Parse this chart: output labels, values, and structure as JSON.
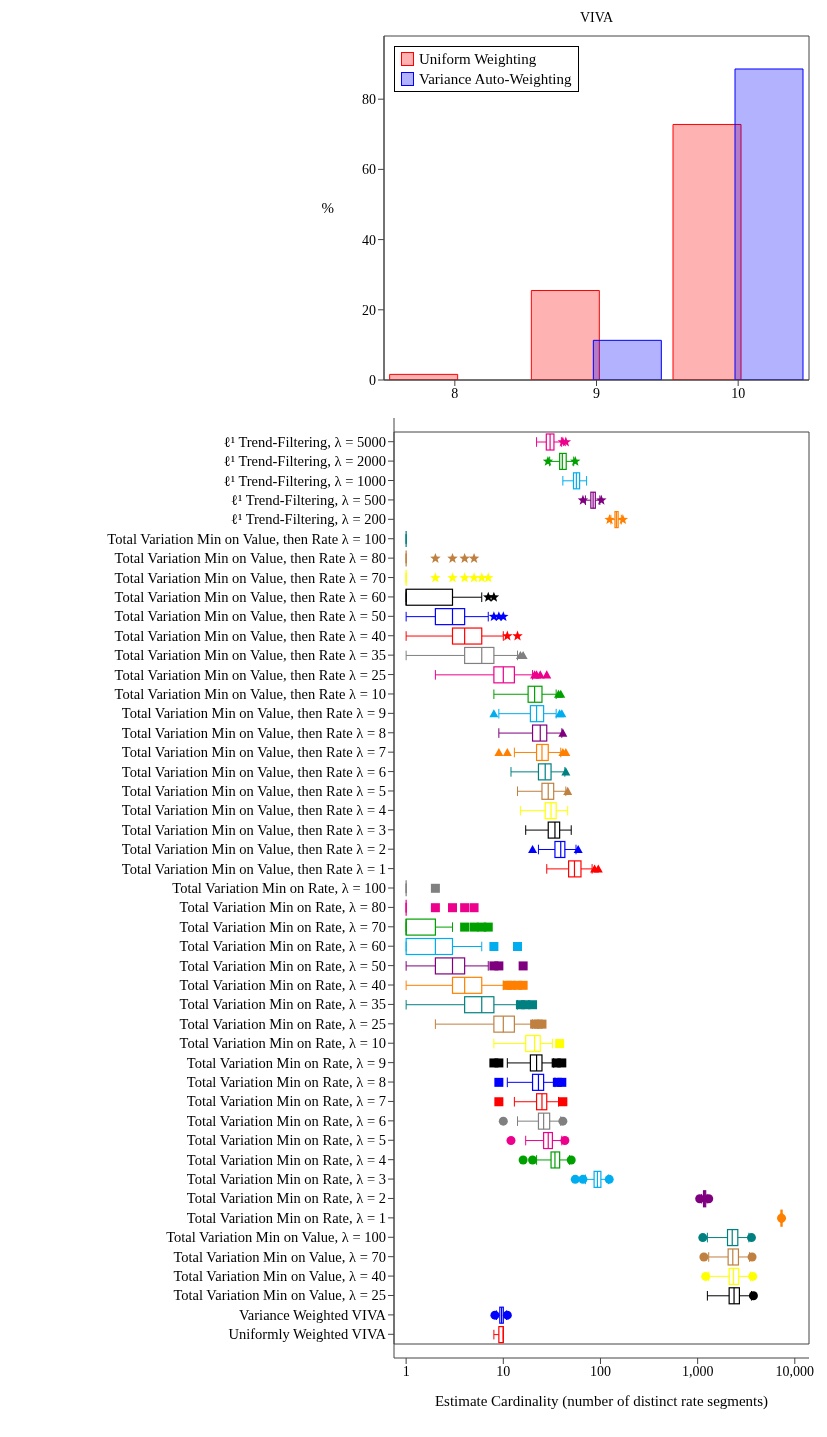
{
  "chart_data": [
    {
      "type": "bar",
      "title": "VIVA",
      "ylabel": "%",
      "categories": [
        "8",
        "9",
        "10"
      ],
      "series": [
        {
          "name": "Uniform Weighting",
          "color": "#ff0000",
          "values": [
            1.6,
            25.5,
            72.8
          ]
        },
        {
          "name": "Variance Auto-Weighting",
          "color": "#0000ff",
          "values": [
            0,
            11.3,
            88.6
          ]
        }
      ],
      "ylim": [
        0,
        98
      ],
      "yticks": [
        0,
        20,
        40,
        60,
        80
      ],
      "legend": "top left"
    },
    {
      "type": "box",
      "orientation": "horizontal",
      "xlabel": "Estimate Cardinality (number of distinct rate segments)",
      "log": "x",
      "xlim": [
        0.75,
        14000
      ],
      "xticks": [
        1,
        10,
        100,
        {
          "value": 1000,
          "label": "1,000"
        },
        {
          "value": 10000,
          "label": "10,000"
        }
      ],
      "categories": [
        "ℓ¹ Trend-Filtering, λ = 5000",
        "ℓ¹ Trend-Filtering, λ = 2000",
        "ℓ¹ Trend-Filtering, λ = 1000",
        "ℓ¹ Trend-Filtering, λ = 500",
        "ℓ¹ Trend-Filtering, λ = 200",
        "Total Variation Min on Value, then Rate λ = 100",
        "Total Variation Min on Value, then Rate λ = 80",
        "Total Variation Min on Value, then Rate λ = 70",
        "Total Variation Min on Value, then Rate λ = 60",
        "Total Variation Min on Value, then Rate λ = 50",
        "Total Variation Min on Value, then Rate λ = 40",
        "Total Variation Min on Value, then Rate λ = 35",
        "Total Variation Min on Value, then Rate λ = 25",
        "Total Variation Min on Value, then Rate λ = 10",
        "Total Variation Min on Value, then Rate λ = 9",
        "Total Variation Min on Value, then Rate λ = 8",
        "Total Variation Min on Value, then Rate λ = 7",
        "Total Variation Min on Value, then Rate λ = 6",
        "Total Variation Min on Value, then Rate λ = 5",
        "Total Variation Min on Value, then Rate λ = 4",
        "Total Variation Min on Value, then Rate λ = 3",
        "Total Variation Min on Value, then Rate λ = 2",
        "Total Variation Min on Value, then Rate λ = 1",
        "Total Variation Min on Rate, λ = 100",
        "Total Variation Min on Rate, λ = 80",
        "Total Variation Min on Rate, λ = 70",
        "Total Variation Min on Rate, λ = 60",
        "Total Variation Min on Rate, λ = 50",
        "Total Variation Min on Rate, λ = 40",
        "Total Variation Min on Rate, λ = 35",
        "Total Variation Min on Rate, λ = 25",
        "Total Variation Min on Rate, λ = 10",
        "Total Variation Min on Rate, λ = 9",
        "Total Variation Min on Rate, λ = 8",
        "Total Variation Min on Rate, λ = 7",
        "Total Variation Min on Rate, λ = 6",
        "Total Variation Min on Rate, λ = 5",
        "Total Variation Min on Rate, λ = 4",
        "Total Variation Min on Rate, λ = 3",
        "Total Variation Min on Rate, λ = 2",
        "Total Variation Min on Rate, λ = 1",
        "Total Variation Min on Value, λ = 100",
        "Total Variation Min on Value, λ = 70",
        "Total Variation Min on Value, λ = 40",
        "Total Variation Min on Value, λ = 25",
        "Variance Weighted VIVA",
        "Uniformly Weighted VIVA"
      ],
      "series": [
        {
          "marker": "star",
          "colors": [
            "#ec008c",
            "#00a000",
            "#00aeef",
            "#7f007f",
            "#ff8000",
            "#008080",
            "#bf8040",
            "#ffff00",
            "#000000",
            "#0000ff",
            "#ff0000",
            null,
            null,
            null,
            null,
            null,
            null,
            null,
            null,
            null,
            null,
            null,
            null,
            null,
            null,
            null,
            null,
            null,
            null,
            null,
            null,
            null,
            null,
            null,
            null,
            null,
            null,
            null,
            null,
            null,
            null,
            null,
            null,
            null,
            null,
            null,
            null
          ],
          "boxes": [
            {
              "low": 22,
              "q1": 27.7,
              "median": 30.3,
              "q3": 33.2,
              "high": 39.6,
              "outliers": [
                41,
                44
              ]
            },
            {
              "low": 30,
              "q1": 38,
              "median": 40.5,
              "q3": 44.4,
              "high": 53,
              "outliers": [
                28.8,
                55
              ]
            },
            {
              "low": 41,
              "q1": 52.8,
              "median": 56.5,
              "q3": 61,
              "high": 72
            },
            {
              "low": 70,
              "q1": 79.6,
              "median": 84,
              "q3": 88.5,
              "high": 98.5,
              "outliers": [
                66,
                102
              ]
            },
            {
              "low": 128,
              "q1": 141,
              "median": 146,
              "q3": 152,
              "high": 164,
              "outliers": [
                124,
                170
              ]
            },
            {
              "low": 1,
              "q1": 1,
              "median": 1,
              "q3": 1,
              "high": 1
            },
            {
              "low": 1,
              "q1": 1,
              "median": 1,
              "q3": 1,
              "high": 1,
              "outliers": [
                2,
                3,
                4,
                5
              ]
            },
            {
              "low": 1,
              "q1": 1,
              "median": 1,
              "q3": 1,
              "high": 1,
              "outliers": [
                2,
                3,
                4,
                5,
                6,
                7
              ]
            },
            {
              "low": 1,
              "q1": 1,
              "median": 1,
              "q3": 3,
              "high": 6,
              "outliers": [
                7,
                8
              ]
            },
            {
              "low": 1,
              "q1": 2,
              "median": 3,
              "q3": 4,
              "high": 7,
              "outliers": [
                8,
                9,
                10
              ]
            },
            {
              "low": 1,
              "q1": 3,
              "median": 4,
              "q3": 6,
              "high": 10,
              "outliers": [
                11,
                14
              ]
            },
            null,
            null,
            null,
            null,
            null,
            null,
            null,
            null,
            null,
            null,
            null,
            null,
            null,
            null,
            null,
            null,
            null,
            null,
            null,
            null,
            null,
            null,
            null,
            null,
            null,
            null,
            null,
            null,
            null,
            null,
            null,
            null,
            null,
            null,
            null,
            null
          ]
        },
        {
          "marker": "triangle",
          "colors": [
            null,
            null,
            null,
            null,
            null,
            null,
            null,
            null,
            null,
            null,
            null,
            "#808080",
            "#ec008c",
            "#00a000",
            "#00aeef",
            "#7f007f",
            "#ff8000",
            "#008080",
            "#bf8040",
            "#ffff00",
            "#000000",
            "#0000ff",
            "#ff0000",
            null,
            null,
            null,
            null,
            null,
            null,
            null,
            null,
            null,
            null,
            null,
            null,
            null,
            null,
            null,
            null,
            null,
            null,
            null,
            null,
            null,
            null,
            null,
            null
          ],
          "boxes": [
            null,
            null,
            null,
            null,
            null,
            null,
            null,
            null,
            null,
            null,
            null,
            {
              "low": 1,
              "q1": 4,
              "median": 6,
              "q3": 8,
              "high": 14,
              "outliers": [
                15,
                16
              ]
            },
            {
              "low": 2,
              "q1": 8,
              "median": 10,
              "q3": 13,
              "high": 20,
              "outliers": [
                21,
                22,
                24,
                28
              ]
            },
            {
              "low": 8,
              "q1": 18,
              "median": 21,
              "q3": 25,
              "high": 35,
              "outliers": [
                37,
                39
              ]
            },
            {
              "low": 9,
              "q1": 19,
              "median": 22,
              "q3": 26,
              "high": 35,
              "outliers": [
                8,
                38,
                40
              ]
            },
            {
              "low": 9,
              "q1": 20,
              "median": 24,
              "q3": 28,
              "high": 40,
              "outliers": [
                41
              ]
            },
            {
              "low": 13,
              "q1": 22,
              "median": 25,
              "q3": 29,
              "high": 39,
              "outliers": [
                9,
                11,
                41,
                44
              ]
            },
            {
              "low": 12,
              "q1": 23,
              "median": 27,
              "q3": 31,
              "high": 43,
              "outliers": [
                44
              ]
            },
            {
              "low": 14,
              "q1": 25,
              "median": 29,
              "q3": 33,
              "high": 44,
              "outliers": [
                46
              ]
            },
            {
              "low": 15,
              "q1": 27,
              "median": 31,
              "q3": 35,
              "high": 46
            },
            {
              "low": 17,
              "q1": 29,
              "median": 34,
              "q3": 38,
              "high": 50
            },
            {
              "low": 23,
              "q1": 34,
              "median": 39,
              "q3": 43,
              "high": 56,
              "outliers": [
                20,
                59
              ]
            },
            {
              "low": 28,
              "q1": 47,
              "median": 54,
              "q3": 63,
              "high": 82,
              "outliers": [
                87,
                95
              ]
            },
            null,
            null,
            null,
            null,
            null,
            null,
            null,
            null,
            null,
            null,
            null,
            null,
            null,
            null,
            null,
            null,
            null,
            null,
            null,
            null,
            null,
            null,
            null,
            null
          ]
        },
        {
          "marker": "square",
          "colors": [
            null,
            null,
            null,
            null,
            null,
            null,
            null,
            null,
            null,
            null,
            null,
            null,
            null,
            null,
            null,
            null,
            null,
            null,
            null,
            null,
            null,
            null,
            null,
            "#808080",
            "#ec008c",
            "#00a000",
            "#00aeef",
            "#7f007f",
            "#ff8000",
            "#008080",
            "#bf8040",
            "#ffff00",
            "#000000",
            "#0000ff",
            "#ff0000",
            null,
            null,
            null,
            null,
            null,
            null,
            null,
            null,
            null,
            null,
            null,
            null
          ],
          "boxes": [
            null,
            null,
            null,
            null,
            null,
            null,
            null,
            null,
            null,
            null,
            null,
            null,
            null,
            null,
            null,
            null,
            null,
            null,
            null,
            null,
            null,
            null,
            null,
            {
              "low": 1,
              "q1": 1,
              "median": 1,
              "q3": 1,
              "high": 1,
              "outliers": [
                2
              ]
            },
            {
              "low": 1,
              "q1": 1,
              "median": 1,
              "q3": 1,
              "high": 1,
              "outliers": [
                2,
                3,
                4,
                5
              ]
            },
            {
              "low": 1,
              "q1": 1,
              "median": 1,
              "q3": 2,
              "high": 3,
              "outliers": [
                4,
                5,
                6,
                7
              ]
            },
            {
              "low": 1,
              "q1": 1,
              "median": 2,
              "q3": 3,
              "high": 6,
              "outliers": [
                8,
                14
              ]
            },
            {
              "low": 1,
              "q1": 2,
              "median": 3,
              "q3": 4,
              "high": 7,
              "outliers": [
                8,
                9,
                16
              ]
            },
            {
              "low": 1,
              "q1": 3,
              "median": 4,
              "q3": 6,
              "high": 10,
              "outliers": [
                11,
                12,
                14,
                16
              ]
            },
            {
              "low": 1,
              "q1": 4,
              "median": 6,
              "q3": 8,
              "high": 14,
              "outliers": [
                15,
                17,
                20
              ]
            },
            {
              "low": 2,
              "q1": 8,
              "median": 10,
              "q3": 13,
              "high": 20,
              "outliers": [
                21,
                23,
                25
              ]
            },
            {
              "low": 8,
              "q1": 17,
              "median": 21,
              "q3": 24,
              "high": 32,
              "outliers": [
                38
              ]
            },
            {
              "low": 11,
              "q1": 19,
              "median": 22,
              "q3": 25,
              "high": 33,
              "outliers": [
                8,
                9,
                35,
                40
              ]
            },
            {
              "low": 11,
              "q1": 20,
              "median": 23,
              "q3": 26,
              "high": 34,
              "outliers": [
                9,
                36,
                40
              ]
            },
            {
              "low": 13,
              "q1": 22,
              "median": 25,
              "q3": 28,
              "high": 37,
              "outliers": [
                9,
                41
              ]
            },
            null,
            null,
            null,
            null,
            null,
            null,
            null,
            null,
            null,
            null,
            null,
            null
          ]
        },
        {
          "marker": "circle",
          "colors": [
            null,
            null,
            null,
            null,
            null,
            null,
            null,
            null,
            null,
            null,
            null,
            null,
            null,
            null,
            null,
            null,
            null,
            null,
            null,
            null,
            null,
            null,
            null,
            null,
            null,
            null,
            null,
            null,
            null,
            null,
            null,
            null,
            null,
            null,
            null,
            "#808080",
            "#ec008c",
            "#00a000",
            "#00aeef",
            "#7f007f",
            "#ff8000",
            "#008080",
            "#bf8040",
            "#ffff00",
            "#000000",
            "#0000ff",
            "#ff0000"
          ],
          "boxes": [
            null,
            null,
            null,
            null,
            null,
            null,
            null,
            null,
            null,
            null,
            null,
            null,
            null,
            null,
            null,
            null,
            null,
            null,
            null,
            null,
            null,
            null,
            null,
            null,
            null,
            null,
            null,
            null,
            null,
            null,
            null,
            null,
            null,
            null,
            null,
            {
              "low": 14,
              "q1": 23,
              "median": 26,
              "q3": 30,
              "high": 39,
              "outliers": [
                10,
                41
              ]
            },
            {
              "low": 17,
              "q1": 26,
              "median": 29,
              "q3": 32,
              "high": 40,
              "outliers": [
                12,
                43
              ]
            },
            {
              "low": 22,
              "q1": 31,
              "median": 34,
              "q3": 38,
              "high": 48,
              "outliers": [
                16,
                20,
                50
              ]
            },
            {
              "low": 70,
              "q1": 86,
              "median": 93,
              "q3": 101,
              "high": 121,
              "outliers": [
                55,
                66,
                123
              ]
            },
            {
              "low": 1100,
              "q1": 1150,
              "median": 1180,
              "q3": 1210,
              "high": 1250,
              "outliers": [
                1050,
                1300
              ]
            },
            {
              "low": 7100,
              "q1": 7200,
              "median": 7300,
              "q3": 7400,
              "high": 7500,
              "outliers": [
                7300
              ]
            },
            {
              "low": 1260,
              "q1": 2030,
              "median": 2270,
              "q3": 2590,
              "high": 3370,
              "outliers": [
                1130,
                3580
              ]
            },
            {
              "low": 1300,
              "q1": 2060,
              "median": 2300,
              "q3": 2630,
              "high": 3420,
              "outliers": [
                1160,
                3630
              ]
            },
            {
              "low": 1300,
              "q1": 2110,
              "median": 2340,
              "q3": 2650,
              "high": 3500,
              "outliers": [
                1210,
                3690
              ]
            },
            {
              "low": 1260,
              "q1": 2110,
              "median": 2370,
              "q3": 2690,
              "high": 3580,
              "outliers": [
                3750
              ]
            },
            {
              "low": 8.5,
              "q1": 9.2,
              "median": 9.6,
              "q3": 10,
              "high": 10.8,
              "outliers": [
                8.2,
                11
              ]
            },
            {
              "low": 8,
              "q1": 9,
              "median": 10,
              "q3": 10,
              "high": 10
            }
          ]
        }
      ]
    }
  ]
}
